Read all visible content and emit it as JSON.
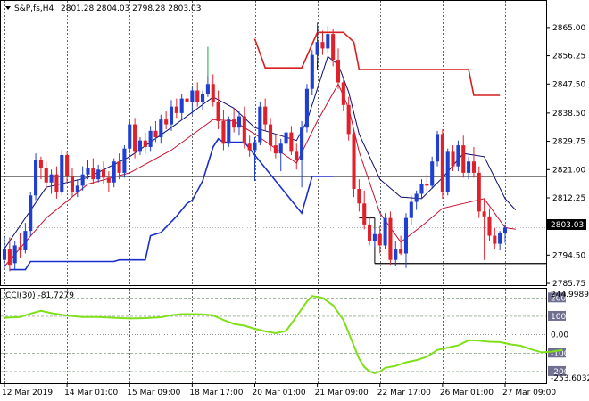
{
  "header": {
    "symbol": "S&P,fs,H4",
    "ohlc": "2801.28 2804.03 2798.28 2803.03"
  },
  "indicator": {
    "label": "CCI(30) -81.7279",
    "scale_max_label": "244.9989",
    "scale_min_label": "-253.6032",
    "levels": [
      "200",
      "100",
      "0.00",
      "-100",
      "-200"
    ]
  },
  "colors": {
    "bull": "#1f3fd1",
    "bear": "#e0202a",
    "ma_fast": "#0b0b6e",
    "ma_slow": "#c8102e",
    "channel_high": "#d61f1f",
    "channel_low": "#1a2ec9",
    "cci_line": "#7fe01a",
    "current_price_bg": "#000000"
  },
  "chart_data": [
    {
      "type": "candlestick",
      "current_price": "2803.03",
      "ylim": [
        2785.75,
        2868.0
      ],
      "y_ticks": [
        "2865.00",
        "2856.25",
        "2847.50",
        "2838.50",
        "2829.75",
        "2821.00",
        "2812.25",
        "2794.50",
        "2785.75"
      ],
      "x_labels": [
        "12 Mar 2019",
        "14 Mar 01:00",
        "15 Mar 09:00",
        "18 Mar 17:00",
        "20 Mar 01:00",
        "21 Mar 09:00",
        "22 Mar 17:00",
        "26 Mar 01:00",
        "27 Mar 09:00"
      ],
      "x_label_positions": [
        0,
        12,
        24,
        36,
        48,
        60,
        72,
        84,
        96
      ],
      "horizontal_lines": [
        2818.9,
        2791.9
      ],
      "candles": [
        [
          2793.0,
          2800.5,
          2790.5,
          2796.5
        ],
        [
          2796.5,
          2800.0,
          2789.5,
          2791.5
        ],
        [
          2792.0,
          2799.0,
          2790.0,
          2797.5
        ],
        [
          2797.0,
          2801.5,
          2793.5,
          2796.0
        ],
        [
          2796.0,
          2804.5,
          2795.0,
          2802.0
        ],
        [
          2802.0,
          2814.0,
          2800.5,
          2813.0
        ],
        [
          2813.0,
          2826.0,
          2811.5,
          2824.0
        ],
        [
          2824.0,
          2825.0,
          2818.0,
          2821.5
        ],
        [
          2821.5,
          2823.5,
          2815.0,
          2817.0
        ],
        [
          2817.0,
          2821.0,
          2813.5,
          2819.5
        ],
        [
          2819.5,
          2822.0,
          2812.0,
          2814.0
        ],
        [
          2814.0,
          2827.0,
          2813.0,
          2825.5
        ],
        [
          2825.5,
          2826.5,
          2817.0,
          2819.0
        ],
        [
          2819.0,
          2821.5,
          2812.5,
          2814.0
        ],
        [
          2814.0,
          2818.0,
          2812.5,
          2816.0
        ],
        [
          2816.0,
          2822.0,
          2814.5,
          2819.5
        ],
        [
          2819.5,
          2824.0,
          2818.0,
          2821.5
        ],
        [
          2821.5,
          2824.5,
          2816.5,
          2818.0
        ],
        [
          2818.0,
          2822.5,
          2817.0,
          2821.0
        ],
        [
          2821.0,
          2823.5,
          2816.5,
          2818.5
        ],
        [
          2818.5,
          2820.5,
          2814.0,
          2817.0
        ],
        [
          2817.0,
          2824.5,
          2815.5,
          2823.5
        ],
        [
          2823.5,
          2826.0,
          2818.0,
          2820.0
        ],
        [
          2820.0,
          2828.5,
          2818.5,
          2827.5
        ],
        [
          2827.5,
          2836.5,
          2826.0,
          2835.0
        ],
        [
          2835.0,
          2837.0,
          2824.5,
          2826.5
        ],
        [
          2826.5,
          2831.0,
          2825.5,
          2830.0
        ],
        [
          2830.0,
          2832.5,
          2826.0,
          2828.0
        ],
        [
          2828.0,
          2834.5,
          2826.5,
          2833.0
        ],
        [
          2833.0,
          2836.0,
          2829.5,
          2831.0
        ],
        [
          2831.0,
          2838.0,
          2829.0,
          2836.5
        ],
        [
          2836.5,
          2839.0,
          2833.5,
          2835.0
        ],
        [
          2835.0,
          2842.5,
          2833.0,
          2840.5
        ],
        [
          2840.5,
          2843.0,
          2837.0,
          2838.5
        ],
        [
          2838.5,
          2844.5,
          2836.5,
          2843.0
        ],
        [
          2843.0,
          2847.0,
          2840.5,
          2842.0
        ],
        [
          2842.0,
          2846.5,
          2838.0,
          2845.5
        ],
        [
          2845.5,
          2848.0,
          2840.5,
          2842.0
        ],
        [
          2842.0,
          2845.5,
          2839.5,
          2844.5
        ],
        [
          2844.5,
          2859.0,
          2843.5,
          2847.5
        ],
        [
          2847.5,
          2850.5,
          2840.5,
          2842.0
        ],
        [
          2842.0,
          2845.5,
          2833.5,
          2836.0
        ],
        [
          2836.0,
          2839.5,
          2827.0,
          2829.0
        ],
        [
          2829.0,
          2837.5,
          2828.0,
          2836.5
        ],
        [
          2836.5,
          2840.0,
          2832.5,
          2834.0
        ],
        [
          2834.0,
          2839.0,
          2831.5,
          2837.5
        ],
        [
          2837.5,
          2840.5,
          2827.5,
          2829.0
        ],
        [
          2829.0,
          2831.5,
          2825.0,
          2827.0
        ],
        [
          2827.0,
          2831.0,
          2817.5,
          2829.5
        ],
        [
          2829.5,
          2842.0,
          2828.5,
          2840.5
        ],
        [
          2840.5,
          2843.0,
          2833.0,
          2835.0
        ],
        [
          2835.0,
          2837.0,
          2826.5,
          2828.5
        ],
        [
          2828.5,
          2832.0,
          2824.5,
          2826.0
        ],
        [
          2826.0,
          2830.5,
          2820.5,
          2829.0
        ],
        [
          2829.0,
          2834.0,
          2827.5,
          2832.5
        ],
        [
          2832.5,
          2834.5,
          2825.5,
          2826.5
        ],
        [
          2826.5,
          2829.0,
          2821.0,
          2824.0
        ],
        [
          2824.0,
          2836.0,
          2815.5,
          2834.0
        ],
        [
          2834.0,
          2847.5,
          2832.5,
          2846.0
        ],
        [
          2846.0,
          2858.0,
          2844.0,
          2856.5
        ],
        [
          2856.5,
          2866.5,
          2854.5,
          2860.5
        ],
        [
          2860.5,
          2864.0,
          2856.5,
          2858.5
        ],
        [
          2858.5,
          2865.5,
          2857.0,
          2863.0
        ],
        [
          2863.0,
          2864.5,
          2853.0,
          2855.0
        ],
        [
          2855.0,
          2858.5,
          2846.0,
          2848.0
        ],
        [
          2848.0,
          2849.5,
          2839.0,
          2841.0
        ],
        [
          2841.0,
          2843.5,
          2830.0,
          2832.0
        ],
        [
          2832.0,
          2833.5,
          2812.5,
          2815.0
        ],
        [
          2815.0,
          2818.0,
          2808.0,
          2810.5
        ],
        [
          2810.5,
          2814.5,
          2802.5,
          2804.0
        ],
        [
          2804.0,
          2806.5,
          2797.5,
          2799.0
        ],
        [
          2799.0,
          2802.5,
          2797.0,
          2801.0
        ],
        [
          2801.0,
          2803.5,
          2795.0,
          2797.5
        ],
        [
          2797.5,
          2807.5,
          2796.5,
          2806.0
        ],
        [
          2806.0,
          2808.0,
          2791.5,
          2793.0
        ],
        [
          2793.0,
          2799.0,
          2791.0,
          2796.5
        ],
        [
          2796.5,
          2800.5,
          2794.5,
          2795.0
        ],
        [
          2795.0,
          2807.5,
          2790.5,
          2806.0
        ],
        [
          2806.0,
          2813.0,
          2804.0,
          2811.0
        ],
        [
          2811.0,
          2814.5,
          2808.5,
          2813.5
        ],
        [
          2813.5,
          2818.0,
          2812.0,
          2816.5
        ],
        [
          2816.5,
          2819.5,
          2814.5,
          2816.0
        ],
        [
          2816.0,
          2825.0,
          2815.0,
          2823.5
        ],
        [
          2823.5,
          2833.0,
          2822.0,
          2832.0
        ],
        [
          2832.0,
          2833.5,
          2812.0,
          2814.0
        ],
        [
          2814.0,
          2827.5,
          2813.0,
          2826.5
        ],
        [
          2826.5,
          2828.5,
          2820.5,
          2822.0
        ],
        [
          2822.0,
          2830.0,
          2820.5,
          2828.5
        ],
        [
          2828.5,
          2831.5,
          2818.5,
          2820.0
        ],
        [
          2820.0,
          2825.0,
          2818.0,
          2823.5
        ],
        [
          2823.5,
          2828.0,
          2818.5,
          2820.0
        ],
        [
          2820.0,
          2822.0,
          2806.0,
          2808.0
        ],
        [
          2808.0,
          2812.0,
          2793.0,
          2806.5
        ],
        [
          2806.5,
          2809.0,
          2799.0,
          2800.5
        ],
        [
          2800.5,
          2803.0,
          2796.5,
          2798.0
        ],
        [
          2798.0,
          2802.0,
          2796.0,
          2801.5
        ],
        [
          2801.28,
          2804.03,
          2798.28,
          2803.03
        ]
      ],
      "ma_fast_line": [
        [
          0,
          2796.5
        ],
        [
          8,
          2815.5
        ],
        [
          16,
          2818.5
        ],
        [
          24,
          2825.0
        ],
        [
          32,
          2834.0
        ],
        [
          40,
          2843.5
        ],
        [
          44,
          2840.0
        ],
        [
          48,
          2834.0
        ],
        [
          56,
          2830.0
        ],
        [
          58,
          2836.0
        ],
        [
          62,
          2856.0
        ],
        [
          64,
          2853.5
        ],
        [
          66,
          2845.0
        ],
        [
          68,
          2832.0
        ],
        [
          72,
          2818.0
        ],
        [
          76,
          2812.5
        ],
        [
          80,
          2812.0
        ],
        [
          84,
          2818.5
        ],
        [
          88,
          2826.0
        ],
        [
          92,
          2825.0
        ],
        [
          96,
          2812.0
        ],
        [
          98,
          2808.5
        ]
      ],
      "ma_slow_line": [
        [
          0,
          2791.0
        ],
        [
          8,
          2806.0
        ],
        [
          16,
          2816.5
        ],
        [
          24,
          2820.0
        ],
        [
          32,
          2827.0
        ],
        [
          40,
          2836.5
        ],
        [
          44,
          2836.0
        ],
        [
          48,
          2832.0
        ],
        [
          56,
          2823.0
        ],
        [
          60,
          2836.0
        ],
        [
          64,
          2847.5
        ],
        [
          66,
          2840.0
        ],
        [
          68,
          2826.5
        ],
        [
          72,
          2807.5
        ],
        [
          76,
          2798.5
        ],
        [
          80,
          2803.5
        ],
        [
          84,
          2809.0
        ],
        [
          88,
          2810.5
        ],
        [
          92,
          2812.0
        ],
        [
          96,
          2803.0
        ],
        [
          98,
          2802.5
        ]
      ],
      "channel_high_line": [
        [
          48,
          2861.5
        ],
        [
          50,
          2852.5
        ],
        [
          57,
          2852.5
        ],
        [
          60,
          2863.5
        ],
        [
          65,
          2863.5
        ],
        [
          67,
          2860.5
        ],
        [
          68,
          2852.0
        ],
        [
          89,
          2852.0
        ],
        [
          90,
          2844.0
        ],
        [
          95,
          2844.0
        ]
      ],
      "channel_low_line": [
        [
          1,
          2790.0
        ],
        [
          4,
          2790.0
        ],
        [
          5,
          2792.5
        ],
        [
          11,
          2792.5
        ],
        [
          15,
          2792.5
        ],
        [
          21,
          2792.5
        ],
        [
          22,
          2793.0
        ],
        [
          27,
          2793.0
        ],
        [
          28,
          2800.5
        ],
        [
          30,
          2801.5
        ],
        [
          33,
          2806.5
        ],
        [
          35,
          2810.5
        ],
        [
          36,
          2811.5
        ],
        [
          38,
          2817.5
        ],
        [
          40,
          2828.0
        ],
        [
          41,
          2830.5
        ],
        [
          42,
          2829.5
        ],
        [
          46,
          2829.5
        ],
        [
          57,
          2807.5
        ],
        [
          59,
          2818.9
        ],
        [
          63,
          2818.9
        ]
      ],
      "box_segments": [
        [
          [
            68,
            2806.0
          ],
          [
            71,
            2806.0
          ]
        ],
        [
          [
            71,
            2806.0
          ],
          [
            71,
            2791.9
          ]
        ],
        [
          [
            60,
            2865.5
          ],
          [
            60,
            2852.0
          ]
        ]
      ]
    },
    {
      "type": "line",
      "ylim": [
        -253.6032,
        244.9989
      ],
      "levels": [
        200,
        100,
        0,
        -100,
        -200
      ],
      "values": [
        [
          0,
          92
        ],
        [
          3,
          96
        ],
        [
          5,
          115
        ],
        [
          7,
          130
        ],
        [
          9,
          117
        ],
        [
          12,
          104
        ],
        [
          15,
          96
        ],
        [
          18,
          96
        ],
        [
          21,
          92
        ],
        [
          24,
          88
        ],
        [
          27,
          90
        ],
        [
          30,
          95
        ],
        [
          32,
          106
        ],
        [
          34,
          112
        ],
        [
          36,
          112
        ],
        [
          38,
          111
        ],
        [
          40,
          105
        ],
        [
          42,
          80
        ],
        [
          44,
          58
        ],
        [
          46,
          49
        ],
        [
          48,
          32
        ],
        [
          50,
          18
        ],
        [
          52,
          8
        ],
        [
          54,
          20
        ],
        [
          56,
          100
        ],
        [
          58,
          180
        ],
        [
          59,
          210
        ],
        [
          61,
          200
        ],
        [
          63,
          160
        ],
        [
          65,
          80
        ],
        [
          66,
          10
        ],
        [
          67,
          -60
        ],
        [
          68,
          -130
        ],
        [
          69,
          -175
        ],
        [
          70,
          -200
        ],
        [
          71,
          -210
        ],
        [
          72,
          -200
        ],
        [
          73,
          -180
        ],
        [
          75,
          -170
        ],
        [
          77,
          -150
        ],
        [
          79,
          -138
        ],
        [
          81,
          -120
        ],
        [
          83,
          -83
        ],
        [
          85,
          -70
        ],
        [
          87,
          -58
        ],
        [
          89,
          -30
        ],
        [
          91,
          -32
        ],
        [
          93,
          -38
        ],
        [
          95,
          -40
        ],
        [
          97,
          -52
        ],
        [
          99,
          -60
        ],
        [
          101,
          -80
        ],
        [
          103,
          -96
        ],
        [
          105,
          -92
        ],
        [
          107,
          -82
        ]
      ]
    }
  ]
}
